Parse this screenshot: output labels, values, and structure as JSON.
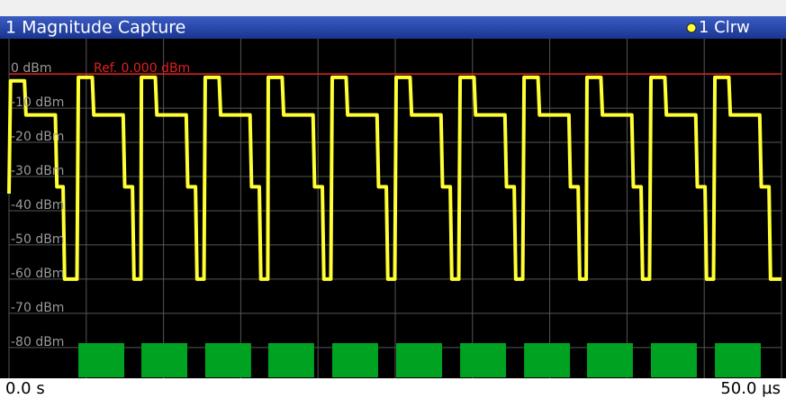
{
  "chart_data": {
    "type": "line",
    "title": "1 Magnitude Capture",
    "legend_label": "1 Clrw",
    "ref_level": 0,
    "ref_label": "Ref. 0.000 dBm",
    "ylim": [
      -89,
      10.3
    ],
    "yticks": [
      {
        "value": 0,
        "label": "0 dBm"
      },
      {
        "value": -10,
        "label": "-10 dBm"
      },
      {
        "value": -20,
        "label": "-20 dBm"
      },
      {
        "value": -30,
        "label": "-30 dBm"
      },
      {
        "value": -40,
        "label": "-40 dBm"
      },
      {
        "value": -50,
        "label": "-50 dBm"
      },
      {
        "value": -60,
        "label": "-60 dBm"
      },
      {
        "value": -70,
        "label": "-70 dBm"
      },
      {
        "value": -80,
        "label": "-80 dBm"
      }
    ],
    "xlim": [
      0,
      50
    ],
    "xticks": [
      0,
      5,
      10,
      15,
      20,
      25,
      30,
      35,
      40,
      45,
      50
    ],
    "xlabels": [
      {
        "value": 0,
        "label": "0.0 s"
      },
      {
        "value": 50,
        "label": "50.0 µs"
      }
    ],
    "grid": true,
    "series": [
      {
        "name": "1 Clrw",
        "color": "#ffff33",
        "x": [
          0,
          0.1,
          1.0,
          1.1,
          3.0,
          3.1,
          3.5,
          3.6,
          4.4,
          4.49,
          5.39,
          5.49,
          7.39,
          7.49,
          7.99,
          8.09,
          8.54,
          8.57,
          9.47,
          9.57,
          11.47,
          11.57,
          12.07,
          12.17,
          12.62,
          12.7,
          13.6,
          13.7,
          15.6,
          15.7,
          16.2,
          16.3,
          16.75,
          16.78,
          17.68,
          17.78,
          19.68,
          19.78,
          20.28,
          20.38,
          20.83,
          20.92,
          21.82,
          21.92,
          23.82,
          23.92,
          24.42,
          24.52,
          24.97,
          25.06,
          25.96,
          26.06,
          27.96,
          28.06,
          28.56,
          28.66,
          29.11,
          29.2,
          30.1,
          30.2,
          32.1,
          32.2,
          32.7,
          32.8,
          33.25,
          33.34,
          34.24,
          34.34,
          36.24,
          36.34,
          36.84,
          36.94,
          37.36,
          37.41,
          38.31,
          38.41,
          40.31,
          40.41,
          40.91,
          41.01,
          41.46,
          41.55,
          42.45,
          42.55,
          44.45,
          44.55,
          45.05,
          45.15,
          45.6,
          45.69,
          46.59,
          46.69,
          48.59,
          48.69,
          49.19,
          49.29,
          50
        ],
        "values": [
          -35,
          -2,
          -2,
          -12,
          -12,
          -33,
          -33,
          -60,
          -60,
          -1,
          -1,
          -12,
          -12,
          -33,
          -33,
          -60,
          -60,
          -1,
          -1,
          -12,
          -12,
          -33,
          -33,
          -60,
          -60,
          -1,
          -1,
          -12,
          -12,
          -33,
          -33,
          -60,
          -60,
          -1,
          -1,
          -12,
          -12,
          -33,
          -33,
          -60,
          -60,
          -1,
          -1,
          -12,
          -12,
          -33,
          -33,
          -60,
          -60,
          -1,
          -1,
          -12,
          -12,
          -33,
          -33,
          -60,
          -60,
          -1,
          -1,
          -12,
          -12,
          -33,
          -33,
          -60,
          -60,
          -1,
          -1,
          -12,
          -12,
          -33,
          -33,
          -60,
          -60,
          -1,
          -1,
          -12,
          -12,
          -33,
          -33,
          -60,
          -60,
          -1,
          -1,
          -12,
          -12,
          -33,
          -33,
          -60,
          -60,
          -1,
          -1,
          -12,
          -12,
          -33,
          -33,
          -60,
          -60
        ]
      }
    ],
    "burst_marks": {
      "color": "#00a321",
      "x": [
        [
          4.49,
          7.46
        ],
        [
          8.57,
          11.54
        ],
        [
          12.7,
          15.67
        ],
        [
          16.78,
          19.75
        ],
        [
          20.92,
          23.89
        ],
        [
          25.06,
          28.03
        ],
        [
          29.2,
          32.17
        ],
        [
          33.34,
          36.31
        ],
        [
          37.41,
          40.38
        ],
        [
          41.55,
          44.52
        ],
        [
          45.69,
          48.66
        ]
      ]
    }
  }
}
